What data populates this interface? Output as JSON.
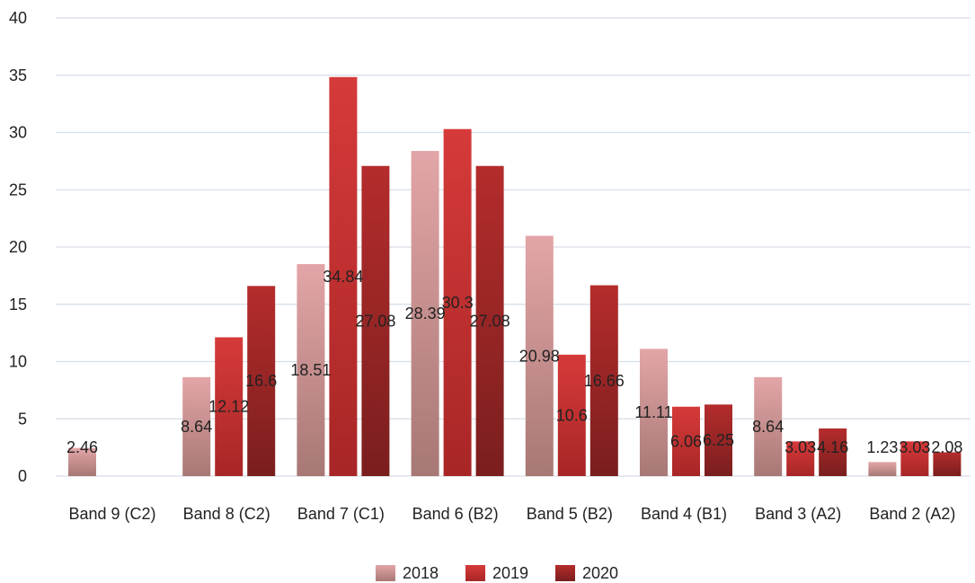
{
  "chart_data": {
    "type": "bar",
    "title": "",
    "xlabel": "",
    "ylabel": "",
    "ylim": [
      0,
      40
    ],
    "yticks": [
      0,
      5,
      10,
      15,
      20,
      25,
      30,
      35,
      40
    ],
    "grid": true,
    "legend_position": "bottom",
    "categories": [
      "Band 9 (C2)",
      "Band 8 (C2)",
      "Band 7 (C1)",
      "Band 6 (B2)",
      "Band 5 (B2)",
      "Band 4 (B1)",
      "Band 3 (A2)",
      "Band 2 (A2)"
    ],
    "series": [
      {
        "name": "2018",
        "values": [
          2.46,
          8.64,
          18.51,
          28.39,
          20.98,
          11.11,
          8.64,
          1.23
        ],
        "labels": [
          "2.46",
          "8.64",
          "18.51",
          "28.39",
          "20.98",
          "11.11",
          "8.64",
          "1.23"
        ],
        "color_top": "#e3a5a8",
        "color_bottom": "#a77874"
      },
      {
        "name": "2019",
        "values": [
          null,
          12.12,
          34.84,
          30.3,
          10.6,
          6.06,
          3.03,
          3.03
        ],
        "labels": [
          "",
          "12.12",
          "34.84",
          "30.3",
          "10.6",
          "6.06",
          "3.03",
          "3.03"
        ],
        "color_top": "#d63a3a",
        "color_bottom": "#a82626"
      },
      {
        "name": "2020",
        "values": [
          null,
          16.6,
          27.08,
          27.08,
          16.66,
          6.25,
          4.16,
          2.08
        ],
        "labels": [
          "",
          "16.6",
          "27.08",
          "27.08",
          "16.66",
          "6.25",
          "4.16",
          "2.08"
        ],
        "color_top": "#b52c2c",
        "color_bottom": "#7a1e1e"
      }
    ]
  }
}
